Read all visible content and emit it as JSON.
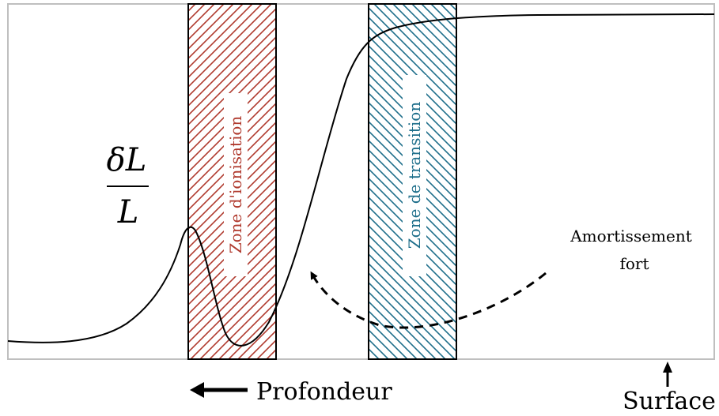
{
  "figure": {
    "y_label_numerator": "δL",
    "y_label_denominator": "L",
    "zones": [
      {
        "label": "Zone d'ionisation",
        "color": "#b03a2e"
      },
      {
        "label": "Zone de transition",
        "color": "#1f6f8b"
      }
    ],
    "annotation": {
      "line1": "Amortissement",
      "line2": "fort"
    },
    "depth_label": "Profondeur",
    "surface_label": "Surface",
    "colors": {
      "curve": "#000000",
      "frame": "#bfbfbf"
    }
  }
}
